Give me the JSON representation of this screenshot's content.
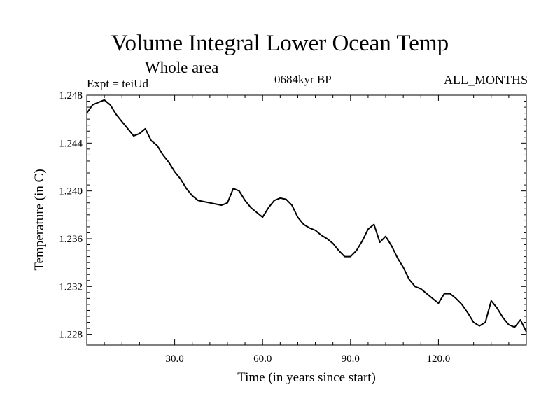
{
  "title": "Volume Integral Lower Ocean Temp",
  "subtitle": "Whole area",
  "experiment": "Expt = teiUd",
  "period": "0684kyr BP",
  "months": "ALL_MONTHS",
  "chart_data": {
    "type": "line",
    "title": "Volume Integral Lower Ocean Temp",
    "xlabel": "Time (in years since start)",
    "ylabel": "Temperature (in C)",
    "xlim": [
      0,
      150
    ],
    "ylim": [
      1.2271,
      1.248
    ],
    "xticks": [
      30,
      60,
      90,
      120
    ],
    "xtick_labels": [
      "30.0",
      "60.0",
      "90.0",
      "120.0"
    ],
    "yticks": [
      1.228,
      1.232,
      1.236,
      1.24,
      1.244,
      1.248
    ],
    "ytick_labels": [
      "1.228",
      "1.232",
      "1.236",
      "1.240",
      "1.244",
      "1.248"
    ],
    "grid": false,
    "series": [
      {
        "name": "Volume Integral Lower Ocean Temp",
        "x": [
          0,
          2,
          4,
          6,
          8,
          10,
          12,
          14,
          16,
          18,
          20,
          22,
          24,
          26,
          28,
          30,
          32,
          34,
          36,
          38,
          40,
          42,
          44,
          46,
          48,
          50,
          52,
          54,
          56,
          58,
          60,
          62,
          64,
          66,
          68,
          70,
          72,
          74,
          76,
          78,
          80,
          82,
          84,
          86,
          88,
          90,
          92,
          94,
          96,
          98,
          100,
          102,
          104,
          106,
          108,
          110,
          112,
          114,
          116,
          118,
          120,
          122,
          124,
          126,
          128,
          130,
          132,
          134,
          136,
          138,
          140,
          142,
          144,
          146,
          148,
          150
        ],
        "values": [
          1.2465,
          1.2472,
          1.2474,
          1.2476,
          1.2472,
          1.2464,
          1.2458,
          1.2452,
          1.2446,
          1.2448,
          1.2452,
          1.2442,
          1.2438,
          1.243,
          1.2424,
          1.2416,
          1.241,
          1.2402,
          1.2396,
          1.2392,
          1.2391,
          1.239,
          1.2389,
          1.2388,
          1.239,
          1.2402,
          1.24,
          1.2392,
          1.2386,
          1.2382,
          1.2378,
          1.2386,
          1.2392,
          1.2394,
          1.2393,
          1.2388,
          1.2378,
          1.2372,
          1.2369,
          1.2367,
          1.2363,
          1.236,
          1.2356,
          1.235,
          1.2345,
          1.2345,
          1.235,
          1.2358,
          1.2368,
          1.2372,
          1.2357,
          1.2362,
          1.2354,
          1.2344,
          1.2336,
          1.2326,
          1.232,
          1.2318,
          1.2314,
          1.231,
          1.2306,
          1.2314,
          1.2314,
          1.231,
          1.2305,
          1.2298,
          1.229,
          1.2287,
          1.229,
          1.2308,
          1.2302,
          1.2294,
          1.2288,
          1.2286,
          1.2292,
          1.2282
        ]
      }
    ]
  }
}
